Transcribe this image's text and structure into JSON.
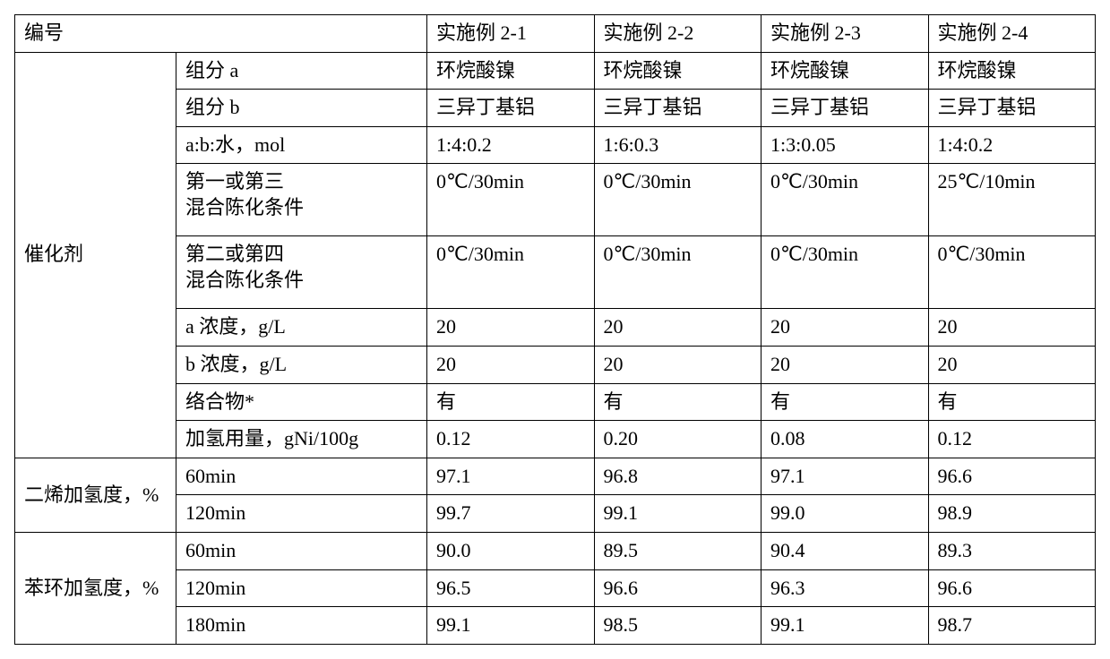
{
  "header": {
    "col0": "编号",
    "col1": "",
    "ex1": "实施例 2-1",
    "ex2": "实施例 2-2",
    "ex3": "实施例 2-3",
    "ex4": "实施例 2-4"
  },
  "catalyst_label": "催化剂",
  "rows": {
    "comp_a": {
      "label": "组分 a",
      "v1": "环烷酸镍",
      "v2": "环烷酸镍",
      "v3": "环烷酸镍",
      "v4": "环烷酸镍"
    },
    "comp_b": {
      "label": "组分 b",
      "v1": "三异丁基铝",
      "v2": "三异丁基铝",
      "v3": "三异丁基铝",
      "v4": "三异丁基铝"
    },
    "ratio": {
      "label": "a:b:水，mol",
      "v1": "1:4:0.2",
      "v2": "1:6:0.3",
      "v3": "1:3:0.05",
      "v4": "1:4:0.2"
    },
    "cond13": {
      "label": "第一或第三\n混合陈化条件",
      "v1": "0℃/30min",
      "v2": "0℃/30min",
      "v3": "0℃/30min",
      "v4": "25℃/10min"
    },
    "cond24": {
      "label": "第二或第四\n混合陈化条件",
      "v1": "0℃/30min",
      "v2": "0℃/30min",
      "v3": "0℃/30min",
      "v4": "0℃/30min"
    },
    "conc_a": {
      "label": "a 浓度，g/L",
      "v1": "20",
      "v2": "20",
      "v3": "20",
      "v4": "20"
    },
    "conc_b": {
      "label": "b 浓度，g/L",
      "v1": "20",
      "v2": "20",
      "v3": "20",
      "v4": "20"
    },
    "complex": {
      "label": "络合物*",
      "v1": "有",
      "v2": "有",
      "v3": "有",
      "v4": "有"
    },
    "h2_dose": {
      "label": "加氢用量，gNi/100g",
      "v1": "0.12",
      "v2": "0.20",
      "v3": "0.08",
      "v4": "0.12"
    }
  },
  "diene_label": "二烯加氢度，%",
  "diene": {
    "t60": {
      "label": "60min",
      "v1": "97.1",
      "v2": "96.8",
      "v3": "97.1",
      "v4": "96.6"
    },
    "t120": {
      "label": "120min",
      "v1": "99.7",
      "v2": "99.1",
      "v3": "99.0",
      "v4": "98.9"
    }
  },
  "benzene_label": "苯环加氢度，%",
  "benzene": {
    "t60": {
      "label": "60min",
      "v1": "90.0",
      "v2": "89.5",
      "v3": "90.4",
      "v4": "89.3"
    },
    "t120": {
      "label": "120min",
      "v1": "96.5",
      "v2": "96.6",
      "v3": "96.3",
      "v4": "96.6"
    },
    "t180": {
      "label": "180min",
      "v1": "99.1",
      "v2": "98.5",
      "v3": "99.1",
      "v4": "98.7"
    }
  },
  "columns_width": [
    "180px",
    "280px",
    "auto",
    "auto",
    "auto",
    "auto"
  ]
}
